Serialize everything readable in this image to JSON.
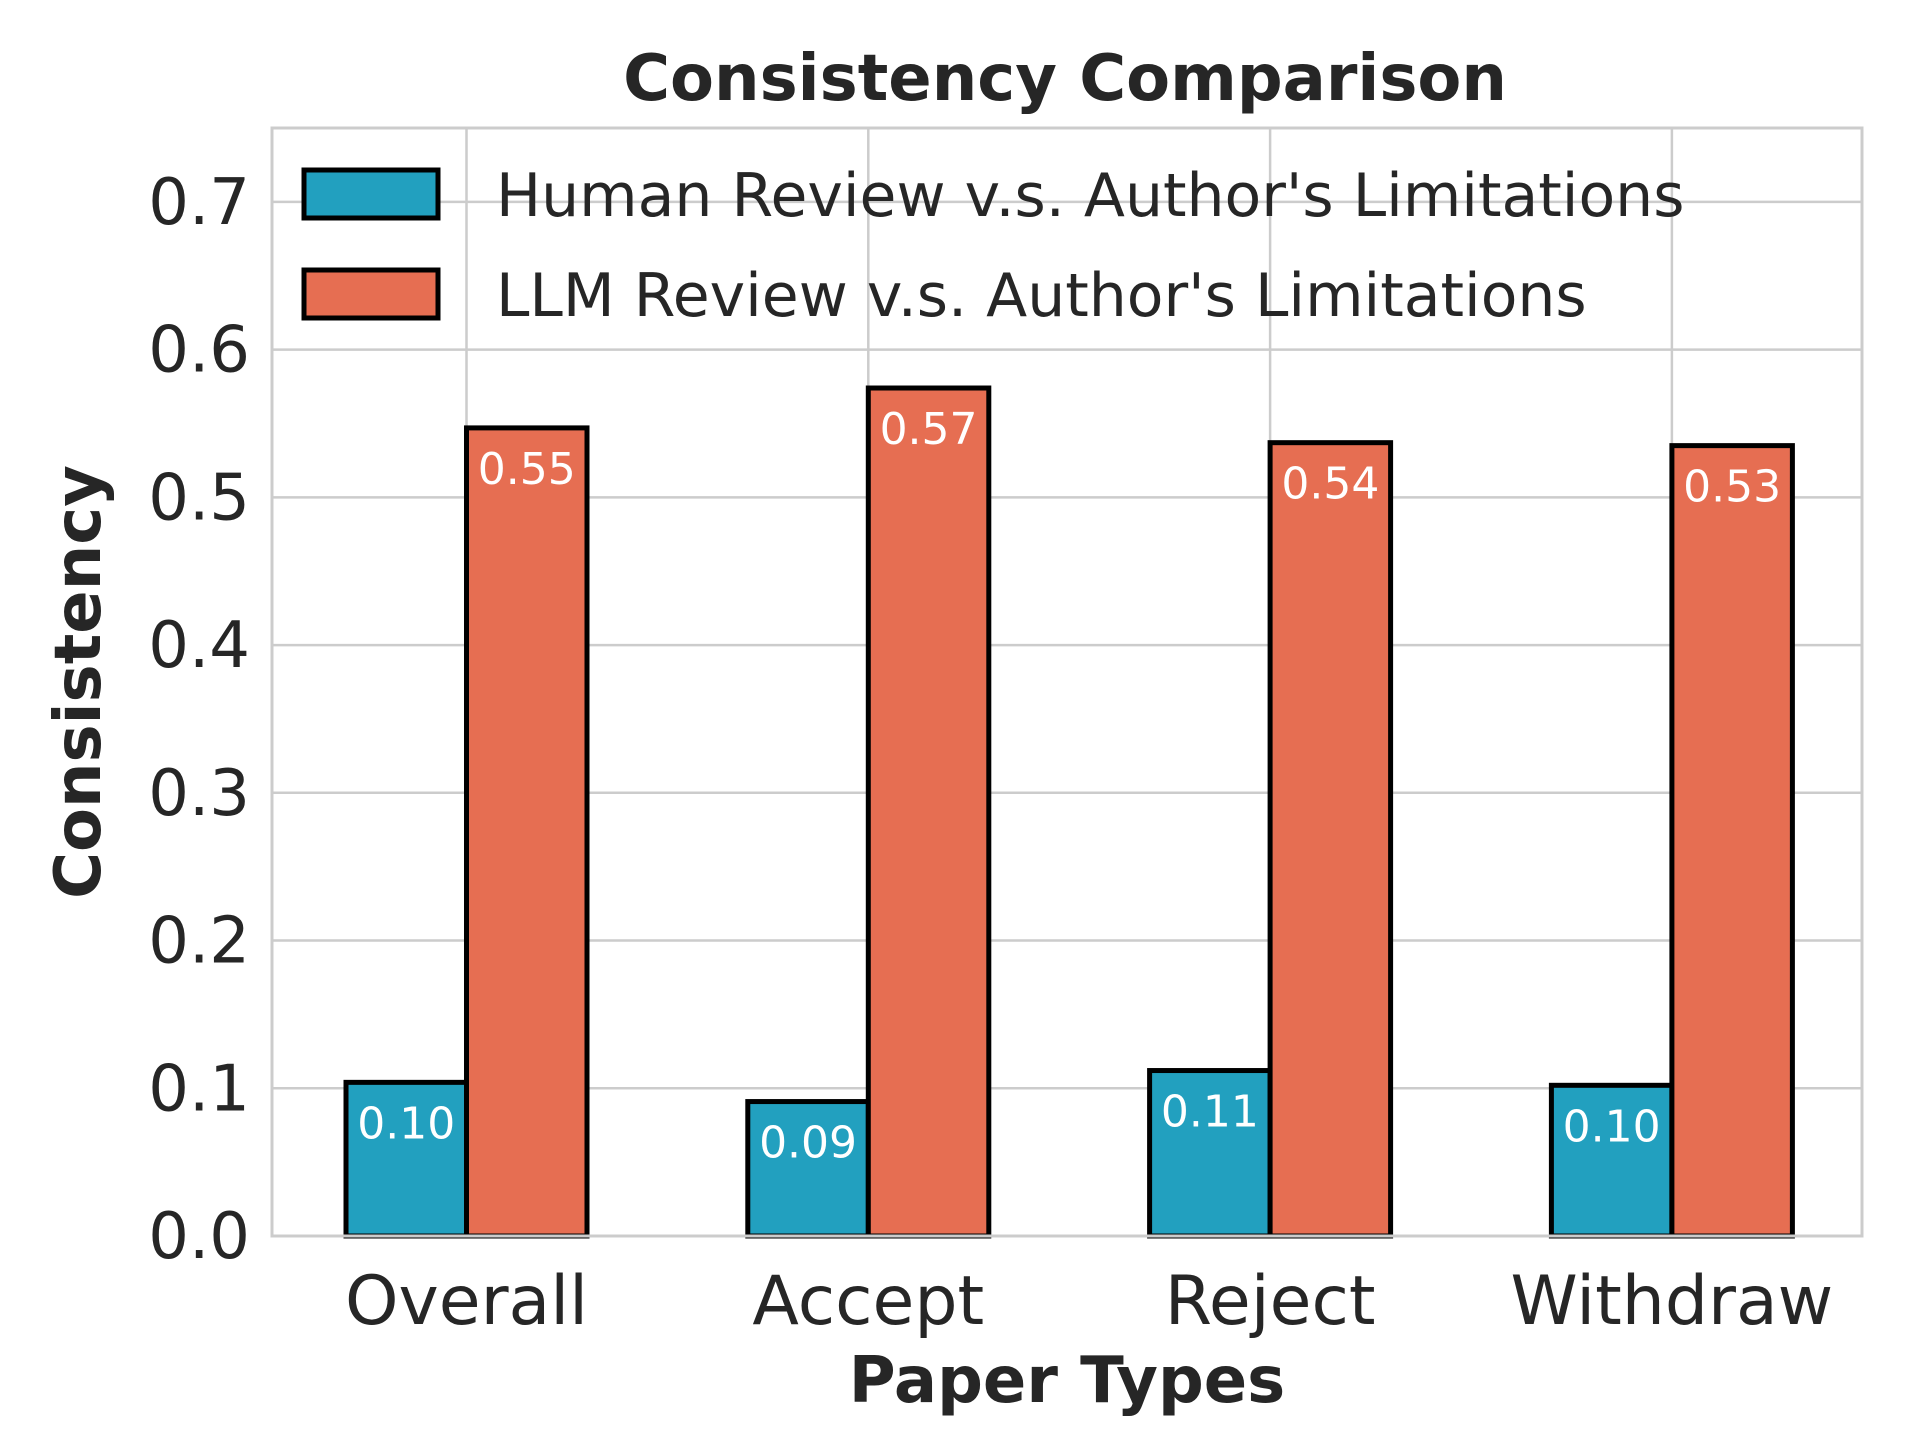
{
  "chart_data": {
    "type": "bar",
    "title": "Consistency Comparison",
    "xlabel": "Paper Types",
    "ylabel": "Consistency",
    "categories": [
      "Overall",
      "Accept",
      "Reject",
      "Withdraw"
    ],
    "ylim": [
      0,
      0.75
    ],
    "yticks": [
      0.0,
      0.1,
      0.2,
      0.3,
      0.4,
      0.5,
      0.6,
      0.7
    ],
    "ytick_labels": [
      "0.0",
      "0.1",
      "0.2",
      "0.3",
      "0.4",
      "0.5",
      "0.6",
      "0.7"
    ],
    "grid": true,
    "legend_position": "top-left",
    "series": [
      {
        "name": "Human Review v.s. Author's Limitations",
        "color": "#22a0bf",
        "values": [
          0.104,
          0.091,
          0.112,
          0.102
        ],
        "labels": [
          "0.10",
          "0.09",
          "0.11",
          "0.10"
        ]
      },
      {
        "name": "LLM Review v.s. Author's Limitations",
        "color": "#e66e52",
        "values": [
          0.547,
          0.574,
          0.537,
          0.535
        ],
        "labels": [
          "0.55",
          "0.57",
          "0.54",
          "0.53"
        ]
      }
    ],
    "bar_edge_color": "#000000",
    "label_color": "#ffffff",
    "grid_color": "#cccccc",
    "text_color": "#262626"
  }
}
